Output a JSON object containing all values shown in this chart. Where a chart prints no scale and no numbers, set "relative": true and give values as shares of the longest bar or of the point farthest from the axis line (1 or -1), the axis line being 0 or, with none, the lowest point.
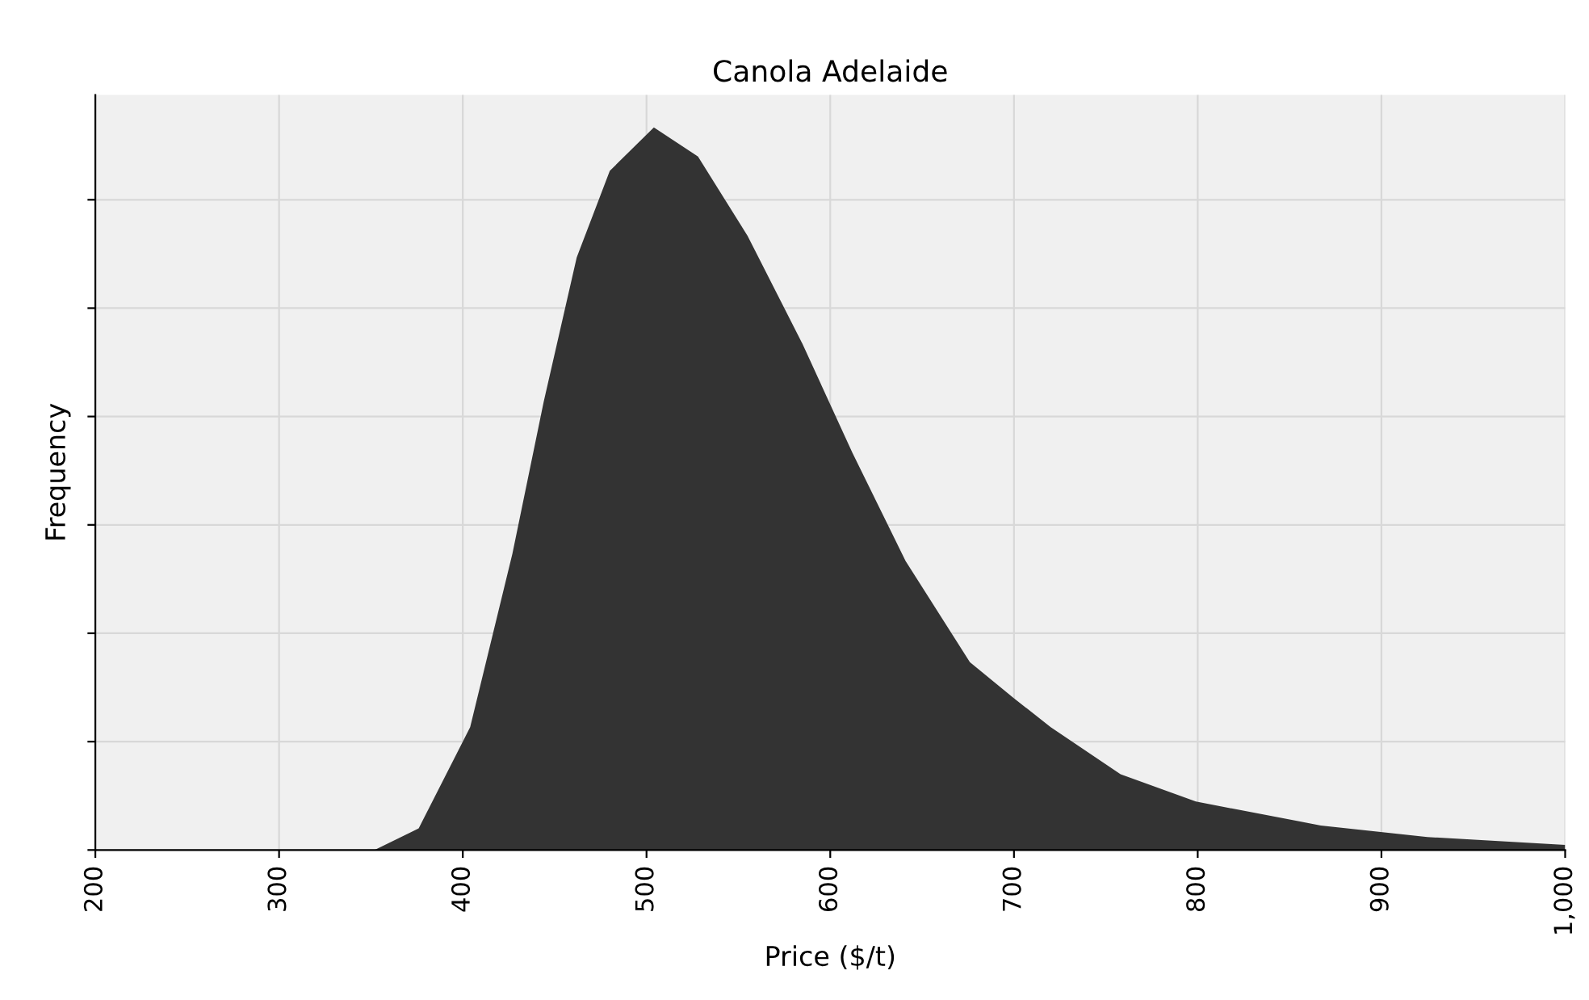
{
  "chart_data": {
    "type": "area",
    "title": "Canola Adelaide",
    "xlabel": "Price ($/t)",
    "ylabel": "Frequency",
    "relative": true,
    "grid": true,
    "xlim": [
      200,
      1000
    ],
    "xticks": [
      200,
      300,
      400,
      500,
      600,
      700,
      800,
      900,
      {
        "value": 1000,
        "label": "1,000"
      }
    ],
    "series": [
      {
        "color": "#333333",
        "x": [
          200,
          300,
          352,
          376,
          404,
          427,
          444,
          462,
          480,
          504,
          528,
          555,
          585,
          612,
          641,
          676,
          700,
          720,
          758,
          799,
          867,
          925,
          1000
        ],
        "values": [
          0,
          0,
          0,
          0.03,
          0.17,
          0.41,
          0.62,
          0.82,
          0.94,
          1,
          0.96,
          0.85,
          0.7,
          0.55,
          0.4,
          0.26,
          0.21,
          0.17,
          0.105,
          0.067,
          0.034,
          0.018,
          0.007
        ]
      }
    ]
  }
}
